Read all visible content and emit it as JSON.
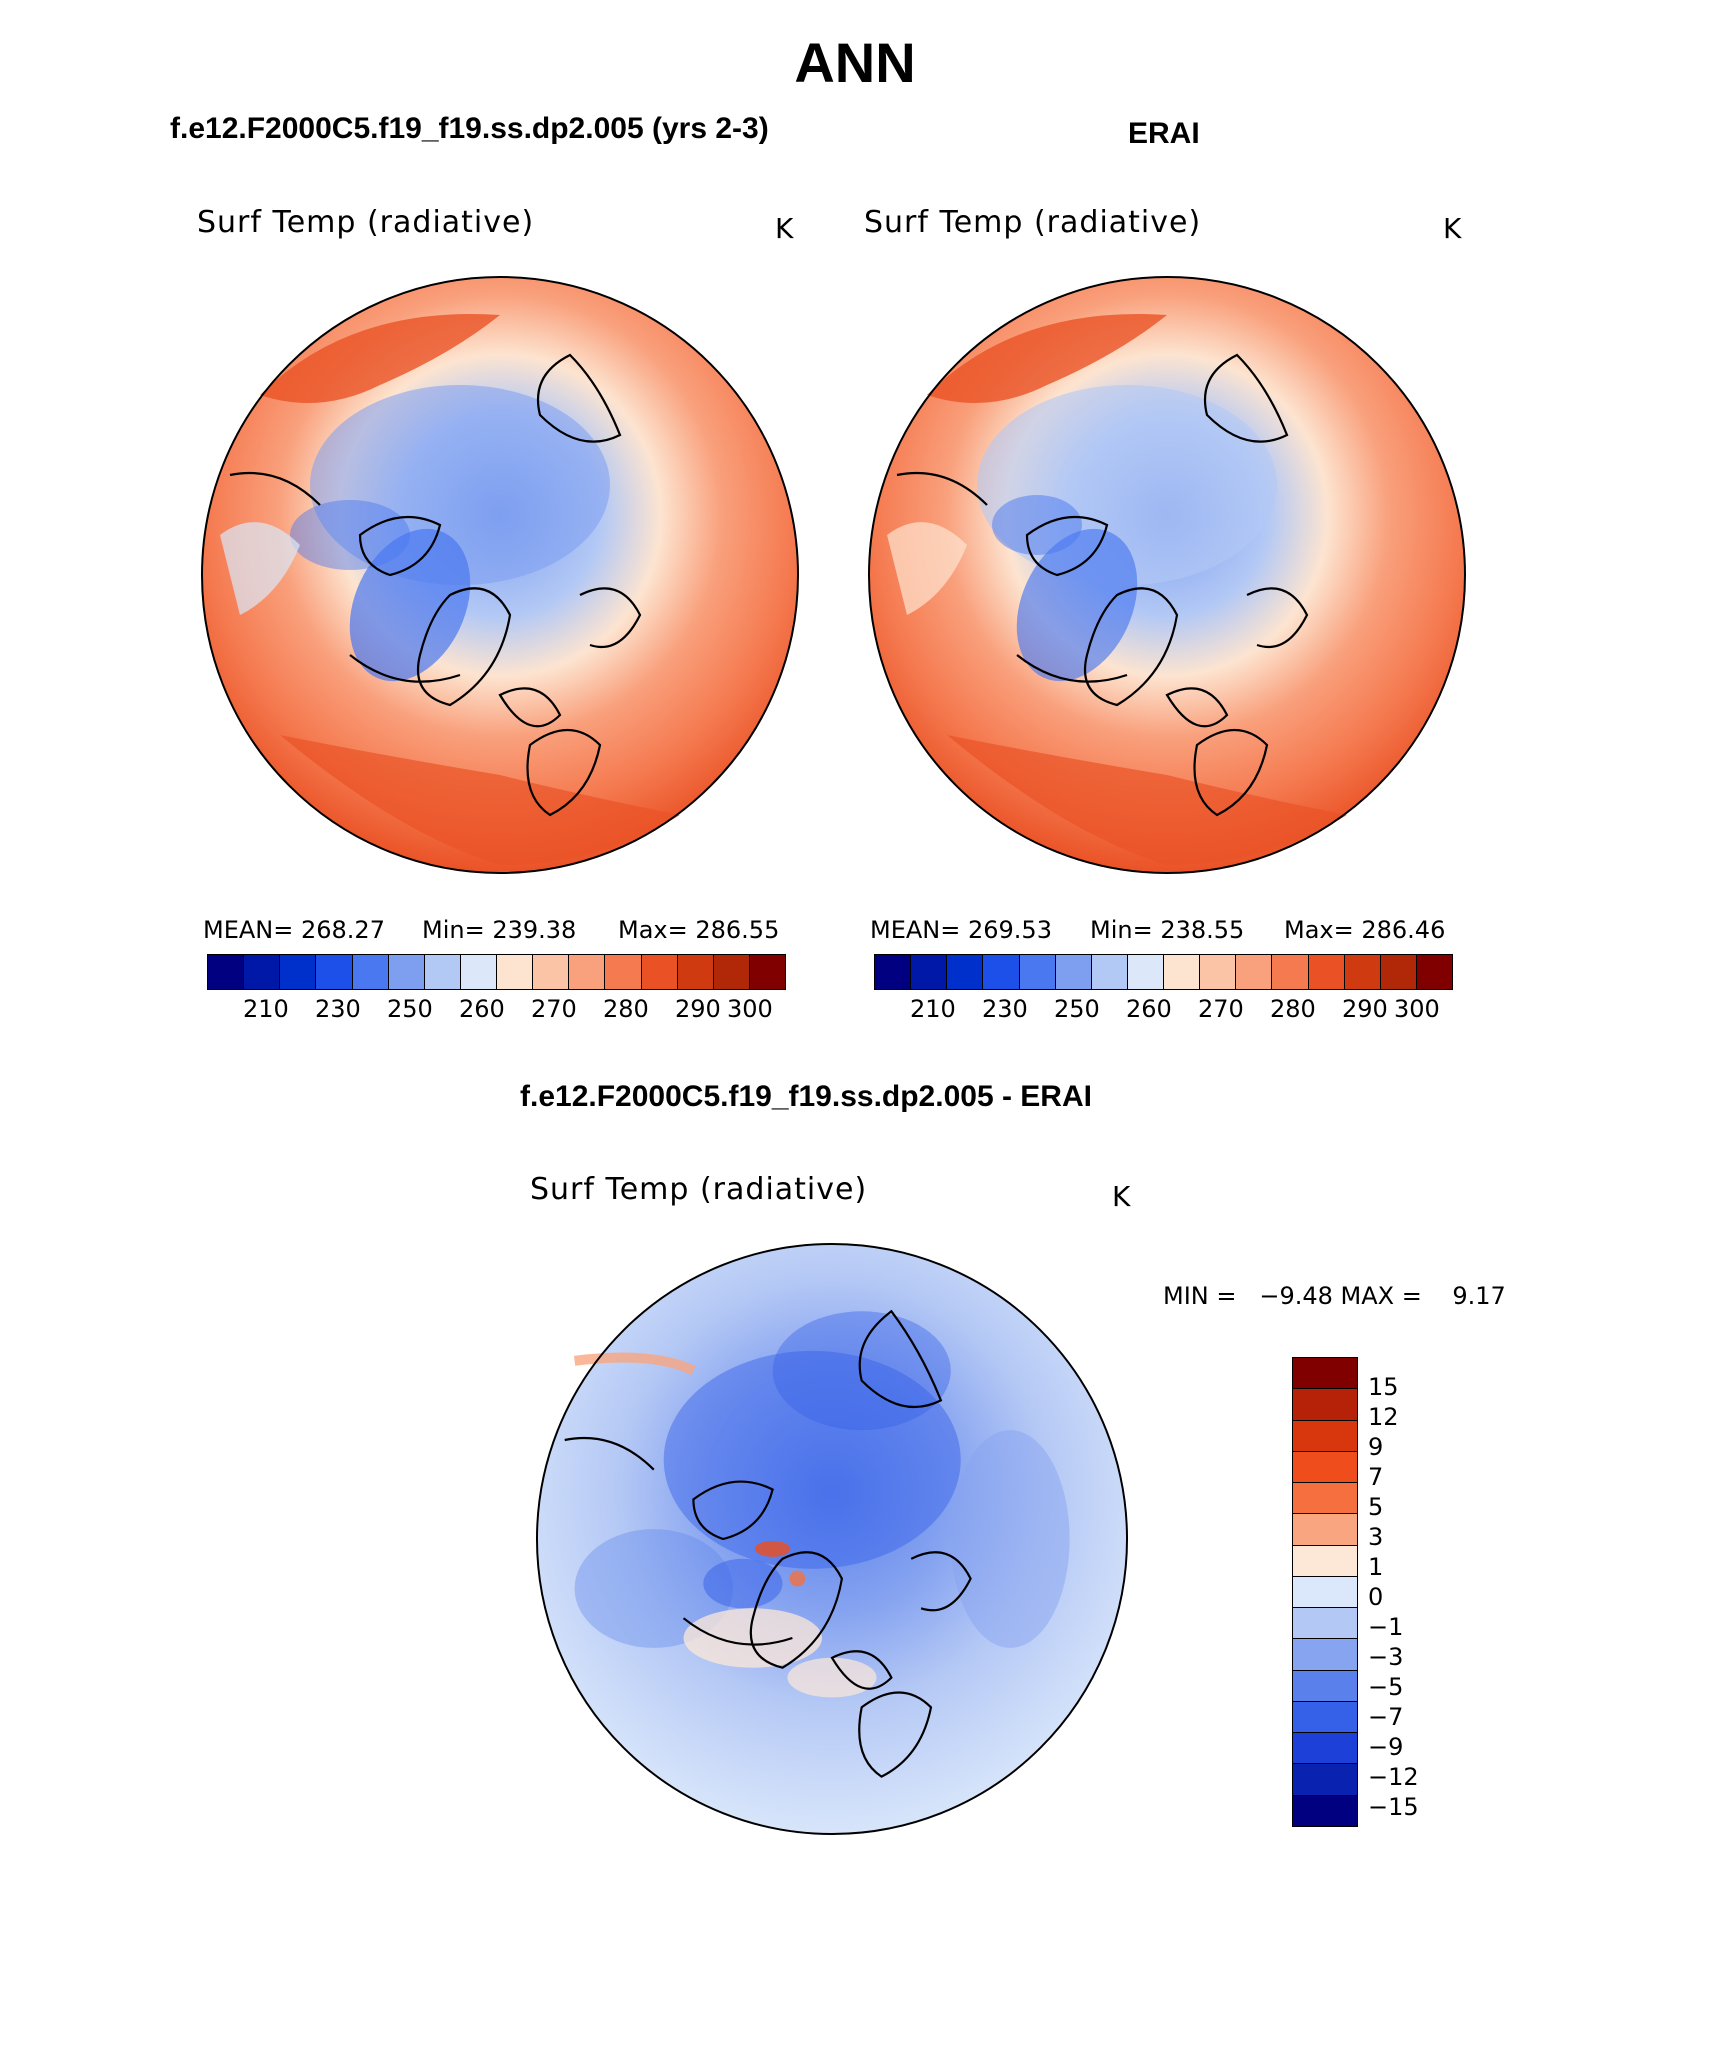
{
  "title": "ANN",
  "panels": {
    "model": {
      "case": "f.e12.F2000C5.f19_f19.ss.dp2.005 (yrs 2-3)",
      "label": "Surf Temp (radiative)",
      "units": "K",
      "mean": "MEAN= 268.27",
      "min": "Min= 239.38",
      "max": "Max= 286.55"
    },
    "obs": {
      "case": "ERAI",
      "label": "Surf Temp (radiative)",
      "units": "K",
      "mean": "MEAN= 269.53",
      "min": "Min= 238.55",
      "max": "Max= 286.46"
    },
    "diff": {
      "case": "f.e12.F2000C5.f19_f19.ss.dp2.005 - ERAI",
      "label": "Surf Temp (radiative)",
      "units": "K",
      "minmax": "MIN =   −9.48 MAX =    9.17"
    }
  },
  "colorbar_abs": {
    "colors": [
      "#000080",
      "#0018a8",
      "#0030cc",
      "#1c50e8",
      "#4a78f0",
      "#7e9ff0",
      "#b2c8f5",
      "#dce8fa",
      "#fde4d0",
      "#fbc4a6",
      "#f9a07c",
      "#f57a50",
      "#ea5226",
      "#d03a10",
      "#b02808",
      "#800000"
    ],
    "ticks": [
      "210",
      "230",
      "250",
      "260",
      "270",
      "280",
      "290",
      "300"
    ]
  },
  "colorbar_diff": {
    "colors": [
      "#800000",
      "#b52208",
      "#d8370e",
      "#ef4d1c",
      "#f5703e",
      "#f9a57f",
      "#fde8d8",
      "#dbe8fb",
      "#b4c8f5",
      "#87a4f0",
      "#5a80ec",
      "#3560e8",
      "#1c40d8",
      "#0a22b0",
      "#000080"
    ],
    "ticks": [
      "15",
      "12",
      "9",
      "7",
      "5",
      "3",
      "1",
      "0",
      "−1",
      "−3",
      "−5",
      "−7",
      "−9",
      "−12",
      "−15"
    ]
  }
}
